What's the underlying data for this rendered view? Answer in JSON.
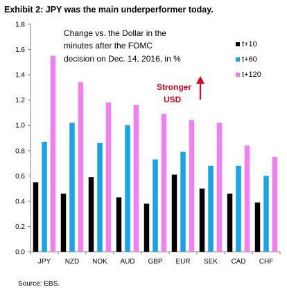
{
  "chart_data": {
    "type": "bar",
    "title": "Exhibit 2: JPY was the main underperformer today.",
    "annotation_lines": [
      "Change vs. the Dollar in the",
      "minutes after the FOMC",
      "decision on Dec. 14, 2016, in %"
    ],
    "direction_lines": [
      "Stronger",
      "USD"
    ],
    "source": "Source: EBS.",
    "categories": [
      "JPY",
      "NZD",
      "NOK",
      "AUD",
      "GBP",
      "EUR",
      "SEK",
      "CAD",
      "CHF"
    ],
    "series": [
      {
        "name": "t+10",
        "color": "#000000",
        "values": [
          0.55,
          0.46,
          0.59,
          0.43,
          0.38,
          0.61,
          0.5,
          0.46,
          0.39
        ]
      },
      {
        "name": "t+60",
        "color": "#1ba3e8",
        "values": [
          0.87,
          1.02,
          0.86,
          1.0,
          0.73,
          0.79,
          0.68,
          0.68,
          0.6
        ]
      },
      {
        "name": "t+120",
        "color": "#f47ff0",
        "values": [
          1.55,
          1.34,
          1.18,
          1.16,
          1.09,
          1.04,
          1.02,
          0.84,
          0.75
        ]
      }
    ],
    "ylim": [
      0,
      1.8
    ],
    "yticks": [
      "0.0",
      "0.2",
      "0.4",
      "0.6",
      "0.8",
      "1.0",
      "1.2",
      "1.4",
      "1.6",
      "1.8"
    ],
    "grid": false,
    "legend_position": "top-right",
    "arrow_color": "#e8001c"
  }
}
